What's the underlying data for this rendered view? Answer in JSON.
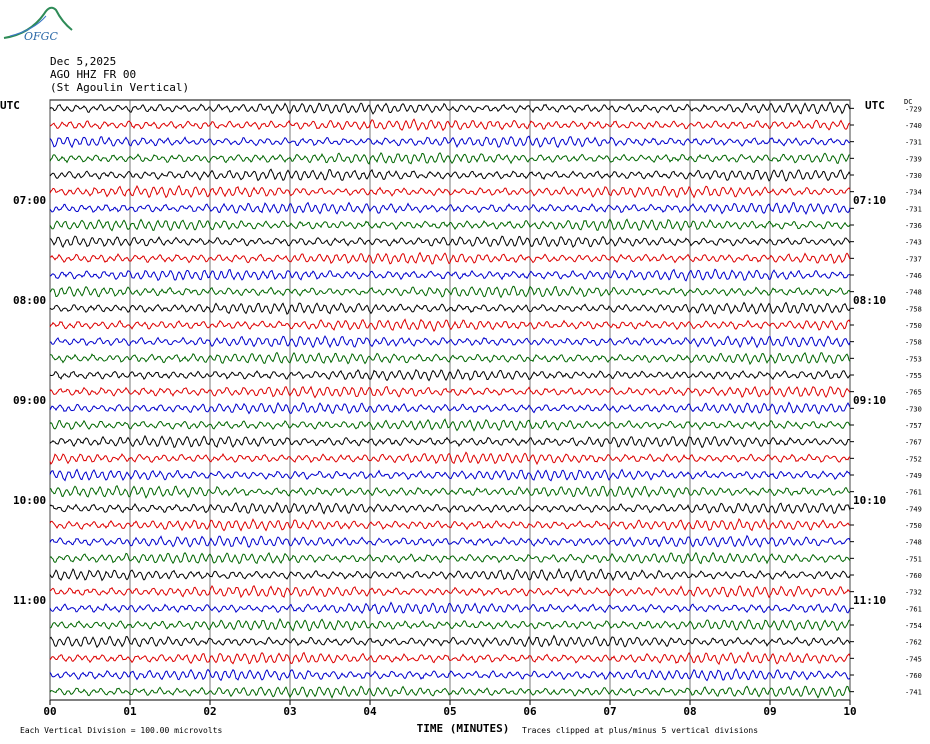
{
  "logo": {
    "text": "OFGC",
    "color": "#2e8b57"
  },
  "header": {
    "date": "Dec 5,2025",
    "channel": "AGO HHZ FR 00",
    "station": "(St Agoulin Vertical)"
  },
  "chart_data": {
    "type": "line",
    "description_source": "helicorder seismogram",
    "left_axis_label": "UTC",
    "right_axis_label": "UTC",
    "dc_label": "DC",
    "xlabel": "TIME (MINUTES)",
    "x_ticks": [
      "00",
      "01",
      "02",
      "03",
      "04",
      "05",
      "06",
      "07",
      "08",
      "09",
      "10"
    ],
    "x_range": [
      0,
      10
    ],
    "left_hour_labels": [
      "07:00",
      "08:00",
      "09:00",
      "10:00",
      "11:00"
    ],
    "right_hour_labels": [
      "07:10",
      "08:10",
      "09:10",
      "10:10",
      "11:10"
    ],
    "hour_label_rows": [
      6,
      12,
      18,
      24,
      30
    ],
    "trace_colors": [
      "#000000",
      "#dd0000",
      "#0000cc",
      "#006600"
    ],
    "dc_offsets": [
      "-729",
      "-740",
      "-731",
      "-739",
      "-730",
      "-734",
      "-731",
      "-736",
      "-743",
      "-737",
      "-746",
      "-748",
      "-758",
      "-750",
      "-758",
      "-753",
      "-755",
      "-765",
      "-730",
      "-757",
      "-767",
      "-752",
      "-749",
      "-761",
      "-749",
      "-750",
      "-748",
      "-751",
      "-760",
      "-732",
      "-761",
      "-754",
      "-762",
      "-745",
      "-760",
      "-741"
    ],
    "footer_left": "Each Vertical Division =  100.00 microvolts",
    "footer_right": "Traces clipped at plus/minus 5 vertical divisions"
  }
}
